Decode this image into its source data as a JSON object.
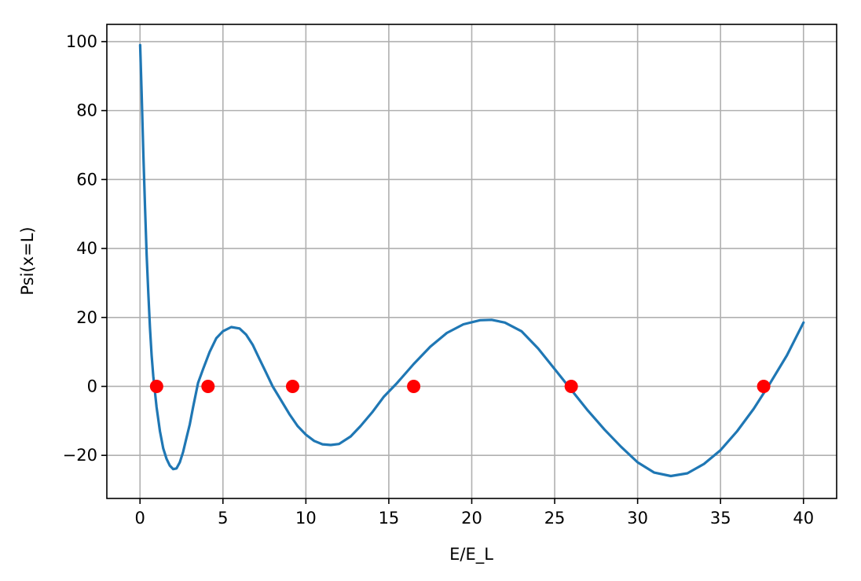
{
  "chart_data": {
    "type": "line",
    "xlabel": "E/E_L",
    "ylabel": "Psi(x=L)",
    "xlim": [
      -2,
      42
    ],
    "ylim": [
      -32.5,
      105
    ],
    "grid": true,
    "x_ticks": [
      0,
      5,
      10,
      15,
      20,
      25,
      30,
      35,
      40
    ],
    "x_tick_labels": [
      "0",
      "5",
      "10",
      "15",
      "20",
      "25",
      "30",
      "35",
      "40"
    ],
    "y_ticks": [
      -20,
      0,
      20,
      40,
      60,
      80,
      100
    ],
    "y_tick_labels": [
      "−20",
      "0",
      "20",
      "40",
      "60",
      "80",
      "100"
    ],
    "series": [
      {
        "kind": "line",
        "color": "#1f77b4",
        "x": [
          0.01,
          0.1,
          0.2,
          0.3,
          0.4,
          0.5,
          0.6,
          0.7,
          0.8,
          1.0,
          1.2,
          1.4,
          1.6,
          1.8,
          2.0,
          2.2,
          2.4,
          2.6,
          2.8,
          3.0,
          3.2,
          3.5,
          3.8,
          4.2,
          4.6,
          5.0,
          5.5,
          6.0,
          6.4,
          6.8,
          7.2,
          7.6,
          8.0,
          8.5,
          9.0,
          9.5,
          10.0,
          10.5,
          11.0,
          11.5,
          12.0,
          12.7,
          13.3,
          14.0,
          14.7,
          15.5,
          16.5,
          17.5,
          18.5,
          19.5,
          20.5,
          21.2,
          22.0,
          23.0,
          24.0,
          25.0,
          26.0,
          27.0,
          28.0,
          29.0,
          30.0,
          31.0,
          32.0,
          33.0,
          34.0,
          35.0,
          36.0,
          37.0,
          38.0,
          39.0,
          40.0
        ],
        "y": [
          99,
          85,
          68,
          52,
          38,
          27,
          17,
          9,
          3,
          -6,
          -13,
          -18,
          -21,
          -23,
          -24,
          -23.8,
          -22,
          -19,
          -15,
          -11,
          -6,
          1,
          5,
          10,
          14,
          16,
          17.2,
          16.8,
          15,
          12,
          8,
          4,
          0,
          -4,
          -8,
          -11.5,
          -14,
          -15.8,
          -16.8,
          -17,
          -16.7,
          -14.5,
          -11.5,
          -7.5,
          -3,
          1,
          6.5,
          11.5,
          15.5,
          18,
          19.2,
          19.3,
          18.5,
          16,
          11,
          5,
          -1,
          -7,
          -12.5,
          -17.5,
          -22,
          -25,
          -26,
          -25.2,
          -22.5,
          -18.5,
          -13,
          -6.5,
          1,
          9,
          18.5
        ]
      },
      {
        "kind": "scatter",
        "color": "#ff0000",
        "x": [
          1.0,
          4.1,
          9.2,
          16.5,
          26.0,
          37.6
        ],
        "y": [
          0,
          0,
          0,
          0,
          0,
          0
        ]
      }
    ]
  }
}
